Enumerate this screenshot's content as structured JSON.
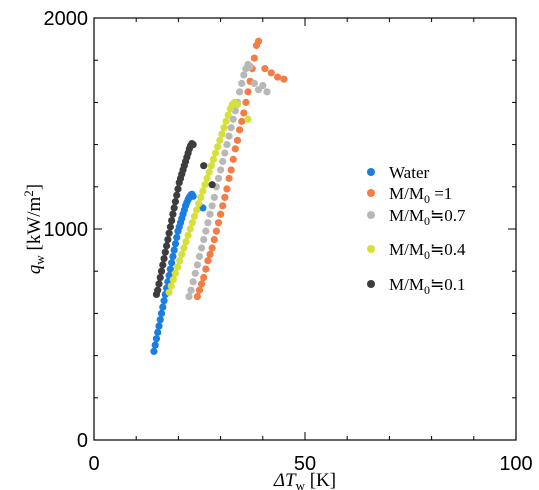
{
  "chart_data": {
    "type": "scatter",
    "xlim": [
      0,
      100
    ],
    "ylim": [
      0,
      2000
    ],
    "x_ticks": [
      0,
      50,
      100
    ],
    "y_ticks": [
      0,
      1000,
      2000
    ],
    "x_tick_labels": [
      "0",
      "50",
      "100"
    ],
    "y_tick_labels": [
      "0",
      "1000",
      "2000"
    ],
    "xlabel": {
      "main": "ΔT",
      "sub": "w",
      "unit": " [K]"
    },
    "ylabel": {
      "main": "q",
      "sub": "w",
      "unit": " [kW/m",
      "sup": "2",
      "close": "]"
    },
    "legend_position": "right",
    "series": [
      {
        "name": "Water",
        "label": {
          "a": "Water"
        },
        "color": "#1a7de0",
        "x": [
          14.2,
          14.5,
          14.8,
          15.1,
          15.4,
          15.7,
          16.0,
          16.3,
          16.6,
          16.9,
          17.2,
          17.5,
          17.8,
          18.1,
          18.4,
          18.7,
          19.0,
          19.3,
          19.6,
          19.9,
          20.2,
          20.5,
          20.8,
          21.1,
          21.4,
          21.7,
          22.0,
          22.3,
          22.6,
          22.9,
          23.2,
          23.5,
          25.8
        ],
        "y": [
          420,
          450,
          480,
          510,
          540,
          570,
          600,
          630,
          660,
          690,
          720,
          750,
          780,
          810,
          840,
          870,
          900,
          930,
          960,
          990,
          1010,
          1030,
          1050,
          1070,
          1090,
          1110,
          1125,
          1140,
          1150,
          1160,
          1165,
          1155,
          1100
        ]
      },
      {
        "name": "M/M0 =1",
        "label": {
          "a": "M/M",
          "sub": "0",
          "b": " =1"
        },
        "color": "#f47d45",
        "x": [
          24.5,
          25.0,
          25.5,
          26.0,
          26.5,
          27.0,
          27.5,
          28.0,
          28.5,
          29.0,
          29.5,
          30.0,
          30.5,
          31.0,
          31.5,
          32.0,
          32.5,
          33.0,
          33.5,
          34.0,
          34.5,
          35.0,
          35.5,
          36.0,
          36.5,
          37.0,
          37.5,
          38.0,
          38.5,
          39.0,
          40.5,
          42.0,
          43.5,
          45.0
        ],
        "y": [
          680,
          710,
          740,
          770,
          810,
          850,
          880,
          910,
          950,
          990,
          1030,
          1070,
          1110,
          1150,
          1190,
          1240,
          1280,
          1330,
          1380,
          1420,
          1470,
          1510,
          1550,
          1600,
          1650,
          1700,
          1760,
          1810,
          1870,
          1890,
          1760,
          1740,
          1720,
          1710
        ]
      },
      {
        "name": "M/M0≒0.7",
        "label": {
          "a": "M/M",
          "sub": "0",
          "b": "≒0.7"
        },
        "color": "#b8b8b8",
        "x": [
          22.5,
          23.0,
          23.5,
          24.0,
          24.5,
          25.0,
          25.5,
          26.0,
          26.5,
          27.0,
          27.5,
          28.0,
          28.5,
          29.0,
          29.5,
          30.0,
          30.5,
          31.0,
          31.5,
          32.0,
          32.5,
          33.0,
          33.5,
          34.0,
          34.5,
          35.0,
          35.5,
          36.0,
          36.5,
          37.0,
          38.0,
          39.0,
          40.0,
          41.0
        ],
        "y": [
          680,
          710,
          750,
          790,
          830,
          870,
          910,
          950,
          990,
          1030,
          1070,
          1110,
          1150,
          1200,
          1240,
          1280,
          1320,
          1360,
          1400,
          1440,
          1480,
          1520,
          1560,
          1600,
          1650,
          1690,
          1730,
          1760,
          1780,
          1770,
          1690,
          1660,
          1680,
          1650
        ]
      },
      {
        "name": "M/M0≒0.4",
        "label": {
          "a": "M/M",
          "sub": "0",
          "b": "≒0.4"
        },
        "color": "#d7df3b",
        "x": [
          17.8,
          18.3,
          18.8,
          19.3,
          19.8,
          20.3,
          20.8,
          21.3,
          21.8,
          22.3,
          22.8,
          23.3,
          23.8,
          24.3,
          24.8,
          25.3,
          25.8,
          26.3,
          26.8,
          27.3,
          27.8,
          28.3,
          28.8,
          29.3,
          29.8,
          30.3,
          30.8,
          31.3,
          31.8,
          32.3,
          32.8,
          33.3,
          34.0,
          36.5
        ],
        "y": [
          700,
          730,
          760,
          790,
          820,
          850,
          880,
          910,
          940,
          970,
          1000,
          1030,
          1060,
          1090,
          1120,
          1150,
          1180,
          1210,
          1240,
          1270,
          1300,
          1330,
          1360,
          1390,
          1420,
          1450,
          1480,
          1510,
          1540,
          1570,
          1590,
          1600,
          1590,
          1520
        ]
      },
      {
        "name": "M/M0≒0.1",
        "label": {
          "a": "M/M",
          "sub": "0",
          "b": "≒0.1"
        },
        "color": "#3d3d3d",
        "x": [
          14.8,
          15.1,
          15.4,
          15.7,
          16.0,
          16.3,
          16.6,
          16.9,
          17.2,
          17.5,
          17.8,
          18.1,
          18.4,
          18.7,
          19.0,
          19.3,
          19.6,
          19.9,
          20.2,
          20.5,
          20.8,
          21.1,
          21.4,
          21.7,
          22.0,
          22.3,
          22.6,
          22.9,
          23.2,
          23.5,
          26.0,
          28.0
        ],
        "y": [
          690,
          710,
          740,
          770,
          800,
          830,
          860,
          890,
          920,
          950,
          980,
          1010,
          1040,
          1070,
          1100,
          1130,
          1160,
          1190,
          1220,
          1240,
          1260,
          1280,
          1300,
          1320,
          1340,
          1360,
          1380,
          1395,
          1405,
          1400,
          1300,
          1210
        ]
      }
    ]
  }
}
